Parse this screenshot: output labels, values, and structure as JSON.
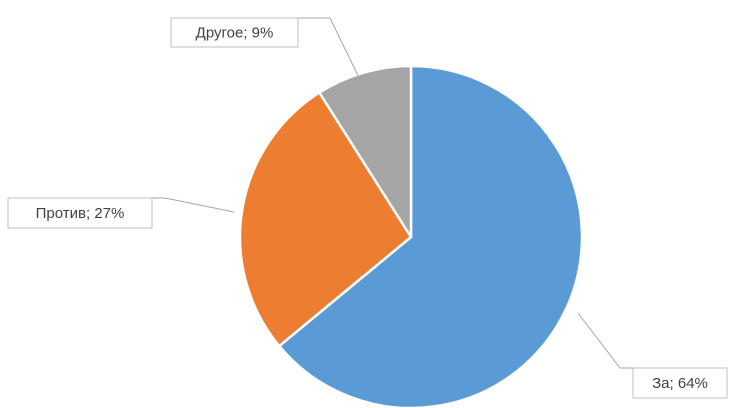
{
  "chart_data": {
    "type": "pie",
    "categories": [
      "За",
      "Против",
      "Другое"
    ],
    "values": [
      64,
      27,
      9
    ],
    "value_labels": [
      "За; 64%",
      "Против; 27%",
      "Другое; 9%"
    ],
    "colors": [
      "#5b9bd5",
      "#ed7d31",
      "#a5a5a5"
    ]
  }
}
